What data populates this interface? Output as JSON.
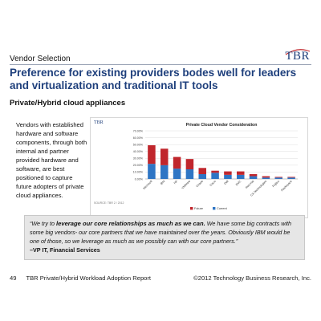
{
  "header": {
    "section_label": "Vendor Selection",
    "logo_text": "TBR"
  },
  "headline": "Preference for existing providers bodes well for leaders and virtualization and traditional IT tools",
  "subheading": "Private/Hybrid cloud appliances",
  "bullet_text": "Vendors with established hardware and software components, through both internal and partner provided hardware and software, are best positioned to capture future adopters of private cloud appliances.",
  "chart_logo": "TBR",
  "chart_source": "SOURCE: TBR 2 / 2012",
  "chart_data": {
    "type": "bar",
    "title": "Private Cloud Vendor Consideration",
    "stacked": true,
    "categories": [
      "Microsoft",
      "IBM",
      "HP",
      "VMWare",
      "Oracle",
      "Cisco",
      "Dell",
      "EMC",
      "Red Hat",
      "CA Technologies",
      "Fujitsu",
      "Rackspace"
    ],
    "series": [
      {
        "name": "Current",
        "color": "#2e75c4",
        "values": [
          22,
          20,
          15,
          14,
          7,
          9,
          6,
          6,
          4,
          2,
          2,
          2
        ]
      },
      {
        "name": "Future",
        "color": "#c0262c",
        "values": [
          27,
          24,
          17,
          15,
          9,
          3,
          5,
          5,
          3,
          2,
          1,
          1
        ]
      }
    ],
    "yticks": [
      "0.00%",
      "10.00%",
      "20.00%",
      "30.00%",
      "40.00%",
      "50.00%",
      "60.00%",
      "70.00%"
    ],
    "ylim": [
      0,
      70
    ],
    "grid": true,
    "legend_order": [
      "Future",
      "Current"
    ],
    "legend_position": "bottom"
  },
  "quote": {
    "open": "“We try to ",
    "highlight": "leverage our core relationships as much as we can.",
    "rest": " We have some big contracts with some big vendors- our core partners that we have maintained over the years. Obviously IBM would be one of those, so we leverage as much as we possibly can with our core partners.”",
    "author": "–VP IT, Financial Services"
  },
  "footer": {
    "page_number": "49",
    "report_title": "TBR Private/Hybrid Workload Adoption Report",
    "copyright": "©2012 Technology Business Research, Inc."
  }
}
